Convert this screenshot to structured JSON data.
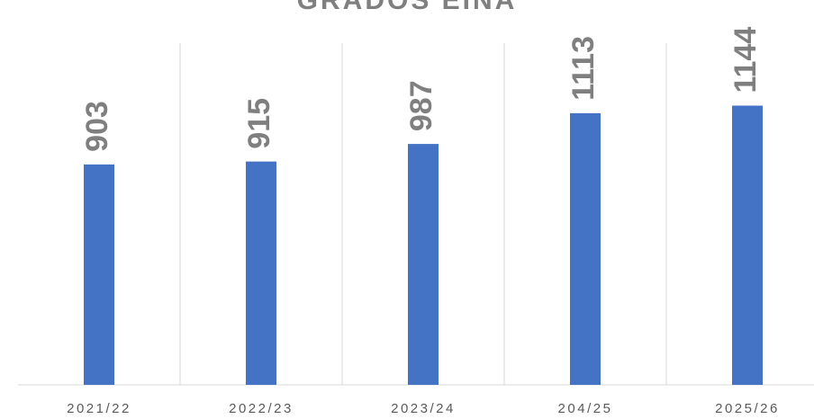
{
  "chart_data": {
    "type": "bar",
    "title": "GRADOS EINA",
    "categories": [
      "2021/22",
      "2022/23",
      "2023/24",
      "204/25",
      "2025/26"
    ],
    "values": [
      903,
      915,
      987,
      1113,
      1144
    ],
    "color": "#4472c4",
    "ylim": [
      0,
      1400
    ]
  }
}
